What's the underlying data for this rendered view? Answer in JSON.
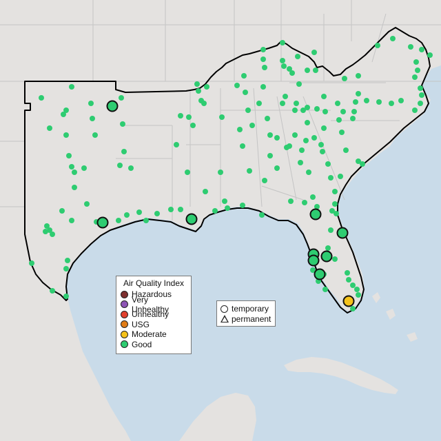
{
  "legend": {
    "title": "Air Quality Index",
    "categories": [
      {
        "label": "Hazardous",
        "color": "#7e2f2f"
      },
      {
        "label": "Very Unhealthy",
        "color": "#8e55b5"
      },
      {
        "label": "Unhealthy",
        "color": "#e0402e"
      },
      {
        "label": "USG",
        "color": "#e07c17"
      },
      {
        "label": "Moderate",
        "color": "#f5c21b"
      },
      {
        "label": "Good",
        "color": "#2ecc71"
      }
    ]
  },
  "type_legend": {
    "temporary": "temporary",
    "permanent": "permanent"
  },
  "colors": {
    "water": "#c9dbe9",
    "land": "#e4e2e0",
    "state_line": "#c4c4c4",
    "region_outline": "#000000",
    "good": "#2ecc71",
    "moderate": "#f5c21b"
  }
}
